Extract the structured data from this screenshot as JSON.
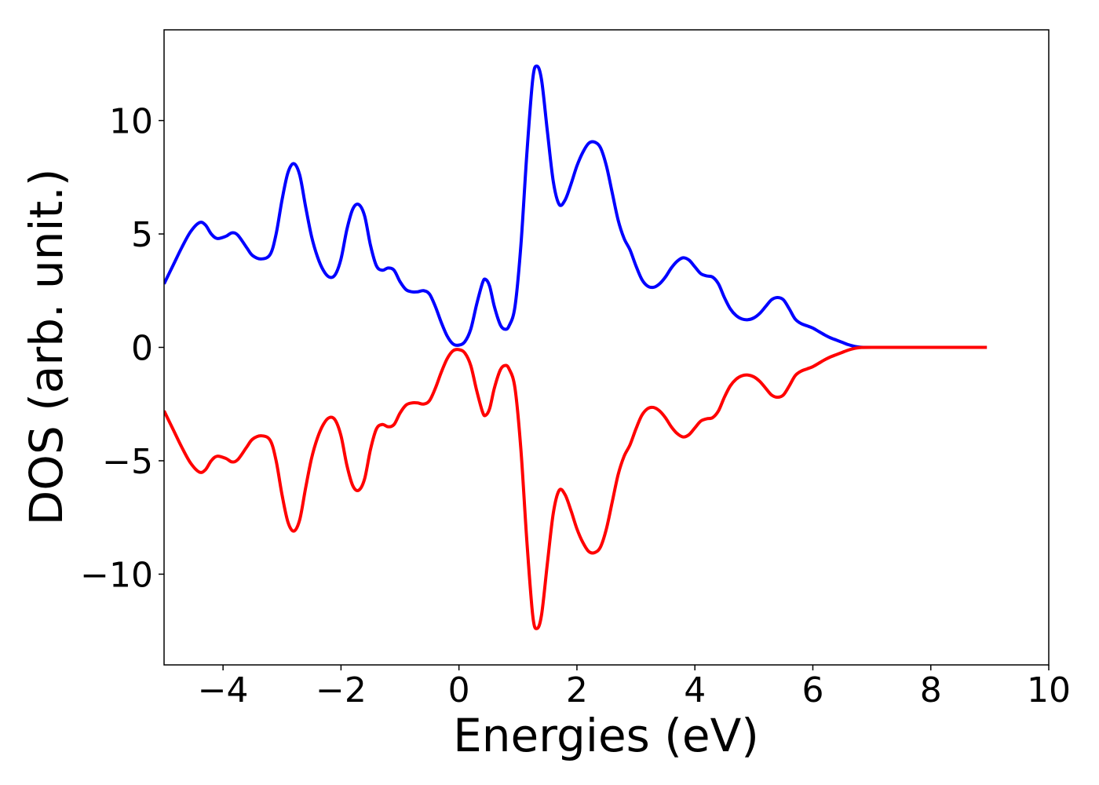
{
  "chart_data": {
    "type": "line",
    "title": "",
    "xlabel": "Energies (eV)",
    "ylabel": "DOS (arb. unit.)",
    "xlim": [
      -5,
      10
    ],
    "ylim": [
      -14,
      14
    ],
    "xticks": [
      {
        "value": -4,
        "label": "−4"
      },
      {
        "value": -2,
        "label": "−2"
      },
      {
        "value": 0,
        "label": "0"
      },
      {
        "value": 2,
        "label": "2"
      },
      {
        "value": 4,
        "label": "4"
      },
      {
        "value": 6,
        "label": "6"
      },
      {
        "value": 8,
        "label": "8"
      },
      {
        "value": 10,
        "label": "10"
      }
    ],
    "yticks": [
      {
        "value": -10,
        "label": "−10"
      },
      {
        "value": -5,
        "label": "−5"
      },
      {
        "value": 0,
        "label": "0"
      },
      {
        "value": 5,
        "label": "5"
      },
      {
        "value": 10,
        "label": "10"
      }
    ],
    "grid": false,
    "legend": "none",
    "series": [
      {
        "color": "#0000ff",
        "points": [
          [
            -5.0,
            2.8
          ],
          [
            -4.85,
            3.6
          ],
          [
            -4.7,
            4.4
          ],
          [
            -4.55,
            5.1
          ],
          [
            -4.4,
            5.5
          ],
          [
            -4.3,
            5.4
          ],
          [
            -4.2,
            5.0
          ],
          [
            -4.1,
            4.8
          ],
          [
            -3.95,
            4.9
          ],
          [
            -3.85,
            5.05
          ],
          [
            -3.75,
            4.95
          ],
          [
            -3.6,
            4.4
          ],
          [
            -3.5,
            4.05
          ],
          [
            -3.35,
            3.9
          ],
          [
            -3.2,
            4.1
          ],
          [
            -3.1,
            5.0
          ],
          [
            -3.0,
            6.5
          ],
          [
            -2.9,
            7.7
          ],
          [
            -2.8,
            8.1
          ],
          [
            -2.7,
            7.6
          ],
          [
            -2.6,
            6.2
          ],
          [
            -2.5,
            4.9
          ],
          [
            -2.4,
            4.0
          ],
          [
            -2.3,
            3.4
          ],
          [
            -2.2,
            3.1
          ],
          [
            -2.1,
            3.2
          ],
          [
            -2.0,
            3.9
          ],
          [
            -1.9,
            5.2
          ],
          [
            -1.8,
            6.1
          ],
          [
            -1.7,
            6.3
          ],
          [
            -1.6,
            5.8
          ],
          [
            -1.5,
            4.5
          ],
          [
            -1.4,
            3.6
          ],
          [
            -1.3,
            3.4
          ],
          [
            -1.2,
            3.5
          ],
          [
            -1.1,
            3.4
          ],
          [
            -1.0,
            2.9
          ],
          [
            -0.9,
            2.55
          ],
          [
            -0.8,
            2.45
          ],
          [
            -0.7,
            2.45
          ],
          [
            -0.6,
            2.5
          ],
          [
            -0.5,
            2.35
          ],
          [
            -0.4,
            1.8
          ],
          [
            -0.3,
            1.1
          ],
          [
            -0.2,
            0.5
          ],
          [
            -0.1,
            0.15
          ],
          [
            0.0,
            0.1
          ],
          [
            0.1,
            0.25
          ],
          [
            0.2,
            0.8
          ],
          [
            0.3,
            1.9
          ],
          [
            0.4,
            2.85
          ],
          [
            0.45,
            3.0
          ],
          [
            0.52,
            2.7
          ],
          [
            0.6,
            1.8
          ],
          [
            0.7,
            1.0
          ],
          [
            0.78,
            0.8
          ],
          [
            0.85,
            0.95
          ],
          [
            0.95,
            1.8
          ],
          [
            1.05,
            4.5
          ],
          [
            1.15,
            8.5
          ],
          [
            1.25,
            11.8
          ],
          [
            1.32,
            12.4
          ],
          [
            1.4,
            11.8
          ],
          [
            1.5,
            9.5
          ],
          [
            1.6,
            7.3
          ],
          [
            1.7,
            6.3
          ],
          [
            1.8,
            6.5
          ],
          [
            1.9,
            7.2
          ],
          [
            2.0,
            8.0
          ],
          [
            2.1,
            8.6
          ],
          [
            2.2,
            9.0
          ],
          [
            2.3,
            9.05
          ],
          [
            2.4,
            8.8
          ],
          [
            2.5,
            8.0
          ],
          [
            2.6,
            6.8
          ],
          [
            2.7,
            5.6
          ],
          [
            2.8,
            4.8
          ],
          [
            2.9,
            4.3
          ],
          [
            3.0,
            3.6
          ],
          [
            3.1,
            3.0
          ],
          [
            3.2,
            2.7
          ],
          [
            3.3,
            2.65
          ],
          [
            3.4,
            2.8
          ],
          [
            3.5,
            3.1
          ],
          [
            3.6,
            3.5
          ],
          [
            3.7,
            3.8
          ],
          [
            3.8,
            3.95
          ],
          [
            3.9,
            3.85
          ],
          [
            4.0,
            3.55
          ],
          [
            4.1,
            3.25
          ],
          [
            4.2,
            3.15
          ],
          [
            4.3,
            3.1
          ],
          [
            4.4,
            2.8
          ],
          [
            4.5,
            2.2
          ],
          [
            4.6,
            1.7
          ],
          [
            4.7,
            1.4
          ],
          [
            4.8,
            1.25
          ],
          [
            4.9,
            1.22
          ],
          [
            5.0,
            1.3
          ],
          [
            5.1,
            1.5
          ],
          [
            5.2,
            1.8
          ],
          [
            5.3,
            2.1
          ],
          [
            5.4,
            2.2
          ],
          [
            5.5,
            2.1
          ],
          [
            5.6,
            1.7
          ],
          [
            5.7,
            1.25
          ],
          [
            5.8,
            1.05
          ],
          [
            5.9,
            0.95
          ],
          [
            6.0,
            0.85
          ],
          [
            6.1,
            0.7
          ],
          [
            6.2,
            0.55
          ],
          [
            6.3,
            0.42
          ],
          [
            6.4,
            0.32
          ],
          [
            6.5,
            0.22
          ],
          [
            6.6,
            0.12
          ],
          [
            6.7,
            0.05
          ],
          [
            6.8,
            0.01
          ],
          [
            7.0,
            0.0
          ],
          [
            8.0,
            0.0
          ],
          [
            8.95,
            0.0
          ]
        ]
      },
      {
        "color": "#ff0000",
        "points": [
          [
            -5.0,
            -2.8
          ],
          [
            -4.85,
            -3.6
          ],
          [
            -4.7,
            -4.4
          ],
          [
            -4.55,
            -5.1
          ],
          [
            -4.4,
            -5.5
          ],
          [
            -4.3,
            -5.4
          ],
          [
            -4.2,
            -5.0
          ],
          [
            -4.1,
            -4.8
          ],
          [
            -3.95,
            -4.9
          ],
          [
            -3.85,
            -5.05
          ],
          [
            -3.75,
            -4.95
          ],
          [
            -3.6,
            -4.4
          ],
          [
            -3.5,
            -4.05
          ],
          [
            -3.35,
            -3.9
          ],
          [
            -3.2,
            -4.1
          ],
          [
            -3.1,
            -5.0
          ],
          [
            -3.0,
            -6.5
          ],
          [
            -2.9,
            -7.7
          ],
          [
            -2.8,
            -8.1
          ],
          [
            -2.7,
            -7.6
          ],
          [
            -2.6,
            -6.2
          ],
          [
            -2.5,
            -4.9
          ],
          [
            -2.4,
            -4.0
          ],
          [
            -2.3,
            -3.4
          ],
          [
            -2.2,
            -3.1
          ],
          [
            -2.1,
            -3.2
          ],
          [
            -2.0,
            -3.9
          ],
          [
            -1.9,
            -5.2
          ],
          [
            -1.8,
            -6.1
          ],
          [
            -1.7,
            -6.3
          ],
          [
            -1.6,
            -5.8
          ],
          [
            -1.5,
            -4.5
          ],
          [
            -1.4,
            -3.6
          ],
          [
            -1.3,
            -3.4
          ],
          [
            -1.2,
            -3.5
          ],
          [
            -1.1,
            -3.4
          ],
          [
            -1.0,
            -2.9
          ],
          [
            -0.9,
            -2.55
          ],
          [
            -0.8,
            -2.45
          ],
          [
            -0.7,
            -2.45
          ],
          [
            -0.6,
            -2.5
          ],
          [
            -0.5,
            -2.35
          ],
          [
            -0.4,
            -1.8
          ],
          [
            -0.3,
            -1.1
          ],
          [
            -0.2,
            -0.5
          ],
          [
            -0.1,
            -0.15
          ],
          [
            0.0,
            -0.1
          ],
          [
            0.1,
            -0.25
          ],
          [
            0.2,
            -0.8
          ],
          [
            0.3,
            -1.9
          ],
          [
            0.4,
            -2.85
          ],
          [
            0.45,
            -3.0
          ],
          [
            0.52,
            -2.7
          ],
          [
            0.6,
            -1.8
          ],
          [
            0.7,
            -1.0
          ],
          [
            0.78,
            -0.8
          ],
          [
            0.85,
            -0.95
          ],
          [
            0.95,
            -1.8
          ],
          [
            1.05,
            -4.5
          ],
          [
            1.15,
            -8.5
          ],
          [
            1.25,
            -11.8
          ],
          [
            1.32,
            -12.4
          ],
          [
            1.4,
            -11.8
          ],
          [
            1.5,
            -9.5
          ],
          [
            1.6,
            -7.3
          ],
          [
            1.7,
            -6.3
          ],
          [
            1.8,
            -6.5
          ],
          [
            1.9,
            -7.2
          ],
          [
            2.0,
            -8.0
          ],
          [
            2.1,
            -8.6
          ],
          [
            2.2,
            -9.0
          ],
          [
            2.3,
            -9.05
          ],
          [
            2.4,
            -8.8
          ],
          [
            2.5,
            -8.0
          ],
          [
            2.6,
            -6.8
          ],
          [
            2.7,
            -5.6
          ],
          [
            2.8,
            -4.8
          ],
          [
            2.9,
            -4.3
          ],
          [
            3.0,
            -3.6
          ],
          [
            3.1,
            -3.0
          ],
          [
            3.2,
            -2.7
          ],
          [
            3.3,
            -2.65
          ],
          [
            3.4,
            -2.8
          ],
          [
            3.5,
            -3.1
          ],
          [
            3.6,
            -3.5
          ],
          [
            3.7,
            -3.8
          ],
          [
            3.8,
            -3.95
          ],
          [
            3.9,
            -3.85
          ],
          [
            4.0,
            -3.55
          ],
          [
            4.1,
            -3.25
          ],
          [
            4.2,
            -3.15
          ],
          [
            4.3,
            -3.1
          ],
          [
            4.4,
            -2.8
          ],
          [
            4.5,
            -2.2
          ],
          [
            4.6,
            -1.7
          ],
          [
            4.7,
            -1.4
          ],
          [
            4.8,
            -1.25
          ],
          [
            4.9,
            -1.22
          ],
          [
            5.0,
            -1.3
          ],
          [
            5.1,
            -1.5
          ],
          [
            5.2,
            -1.8
          ],
          [
            5.3,
            -2.1
          ],
          [
            5.4,
            -2.2
          ],
          [
            5.5,
            -2.1
          ],
          [
            5.6,
            -1.7
          ],
          [
            5.7,
            -1.25
          ],
          [
            5.8,
            -1.05
          ],
          [
            5.9,
            -0.95
          ],
          [
            6.0,
            -0.85
          ],
          [
            6.1,
            -0.7
          ],
          [
            6.2,
            -0.55
          ],
          [
            6.3,
            -0.42
          ],
          [
            6.4,
            -0.32
          ],
          [
            6.5,
            -0.22
          ],
          [
            6.6,
            -0.12
          ],
          [
            6.7,
            -0.05
          ],
          [
            6.8,
            -0.01
          ],
          [
            7.0,
            0.0
          ],
          [
            8.0,
            0.0
          ],
          [
            8.95,
            0.0
          ]
        ]
      }
    ]
  }
}
